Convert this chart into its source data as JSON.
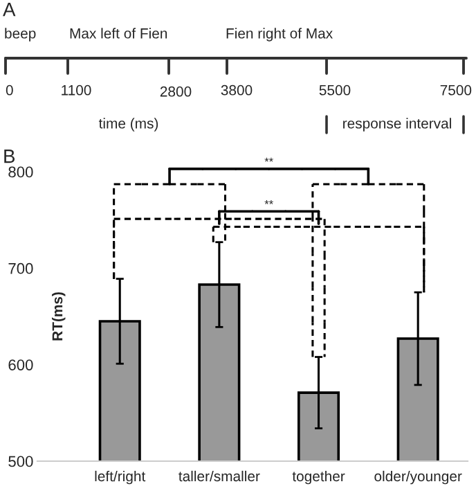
{
  "chart_data": [
    {
      "type": "other",
      "title": "A",
      "annotations": [
        "beep",
        "Max left of Fien",
        "Fien right of Max",
        "0",
        "1100",
        "2800",
        "3800",
        "5500",
        "7500",
        "time (ms)",
        "response interval"
      ]
    },
    {
      "type": "bar",
      "title": "B",
      "ylabel": "RT(ms)",
      "categories": [
        "left/right",
        "taller/smaller",
        "together",
        "older/younger"
      ],
      "values": [
        645,
        683,
        571,
        627
      ],
      "errors": [
        44,
        44,
        37,
        48
      ],
      "color": "#999999",
      "ylim": [
        500,
        800
      ],
      "yticks": [
        500,
        600,
        700,
        800
      ],
      "grid": false,
      "legend": false,
      "annotations": [
        "**",
        "**"
      ]
    }
  ]
}
